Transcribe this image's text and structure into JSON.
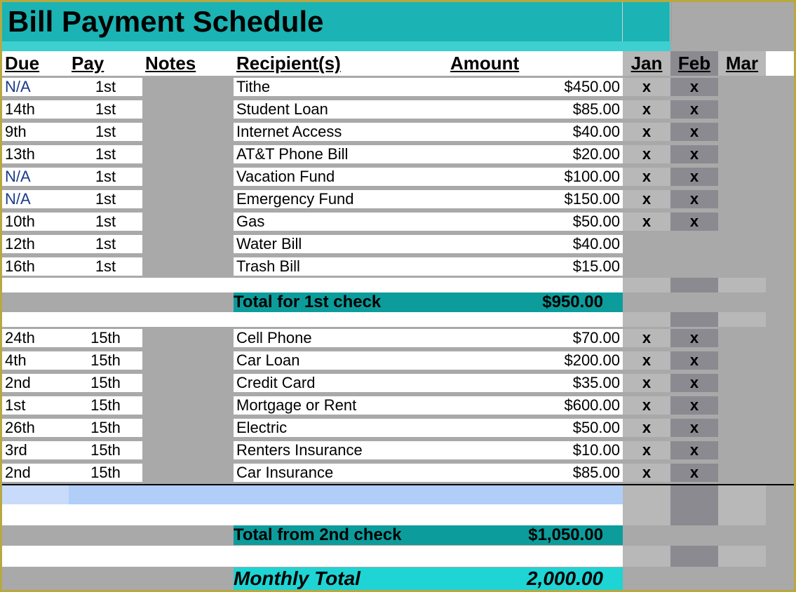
{
  "title": "Bill Payment Schedule",
  "headers": {
    "due": "Due",
    "pay": "Pay",
    "notes": "Notes",
    "recipient": "Recipient(s)",
    "amount": "Amount",
    "jan": "Jan",
    "feb": "Feb",
    "mar": "Mar"
  },
  "colors": {
    "title_bg": "#1bb3b3",
    "spacer_bg": "#3ed0d0",
    "total_bg": "#0d9c9c",
    "monthly_bg": "#1fd4d4",
    "lightblue1": "#c8dbfa",
    "lightblue2": "#b0cef7",
    "jan_bg": "#b8b8b8",
    "feb_bg": "#8a8a90",
    "mar_bg": "#b8b8b8",
    "na_color": "#1a3a8a",
    "page_bg": "#a9a9a9",
    "border": "#b8a840"
  },
  "group1": [
    {
      "due": "N/A",
      "due_na": true,
      "pay": "1st",
      "recipient": "Tithe",
      "amount": "$450.00",
      "jan": "x",
      "feb": "x"
    },
    {
      "due": "14th",
      "pay": "1st",
      "recipient": "Student Loan",
      "amount": "$85.00",
      "jan": "x",
      "feb": "x"
    },
    {
      "due": "9th",
      "pay": "1st",
      "recipient": "Internet Access",
      "amount": "$40.00",
      "jan": "x",
      "feb": "x"
    },
    {
      "due": "13th",
      "pay": "1st",
      "recipient": "AT&T Phone Bill",
      "amount": "$20.00",
      "jan": "x",
      "feb": "x"
    },
    {
      "due": "N/A",
      "due_na": true,
      "pay": "1st",
      "recipient": "Vacation Fund",
      "amount": "$100.00",
      "jan": "x",
      "feb": "x"
    },
    {
      "due": "N/A",
      "due_na": true,
      "pay": "1st",
      "recipient": "Emergency Fund",
      "amount": "$150.00",
      "jan": "x",
      "feb": "x"
    },
    {
      "due": "10th",
      "pay": "1st",
      "recipient": "Gas",
      "amount": "$50.00",
      "jan": "x",
      "feb": "x"
    },
    {
      "due": "12th",
      "pay": "1st",
      "recipient": "Water Bill",
      "amount": "$40.00",
      "jan": "",
      "feb": ""
    },
    {
      "due": "16th",
      "pay": "1st",
      "recipient": "Trash Bill",
      "amount": "$15.00",
      "jan": "",
      "feb": ""
    }
  ],
  "total1": {
    "label": "Total for 1st check",
    "amount": "$950.00"
  },
  "group2": [
    {
      "due": "24th",
      "pay": "15th",
      "recipient": "Cell Phone",
      "amount": "$70.00",
      "jan": "x",
      "feb": "x"
    },
    {
      "due": "4th",
      "pay": "15th",
      "recipient": "Car Loan",
      "amount": "$200.00",
      "jan": "x",
      "feb": "x"
    },
    {
      "due": "2nd",
      "pay": "15th",
      "recipient": "Credit Card",
      "amount": "$35.00",
      "jan": "x",
      "feb": "x"
    },
    {
      "due": "1st",
      "pay": "15th",
      "recipient": "Mortgage or Rent",
      "amount": "$600.00",
      "jan": "x",
      "feb": "x"
    },
    {
      "due": "26th",
      "pay": "15th",
      "recipient": "Electric",
      "amount": "$50.00",
      "jan": "x",
      "feb": "x"
    },
    {
      "due": "3rd",
      "pay": "15th",
      "recipient": "Renters Insurance",
      "amount": "$10.00",
      "jan": "x",
      "feb": "x"
    },
    {
      "due": "2nd",
      "pay": "15th",
      "recipient": "Car Insurance",
      "amount": "$85.00",
      "jan": "x",
      "feb": "x"
    }
  ],
  "total2": {
    "label": "Total from 2nd check",
    "amount": "$1,050.00"
  },
  "monthly": {
    "label": "Monthly Total",
    "amount": "2,000.00"
  }
}
